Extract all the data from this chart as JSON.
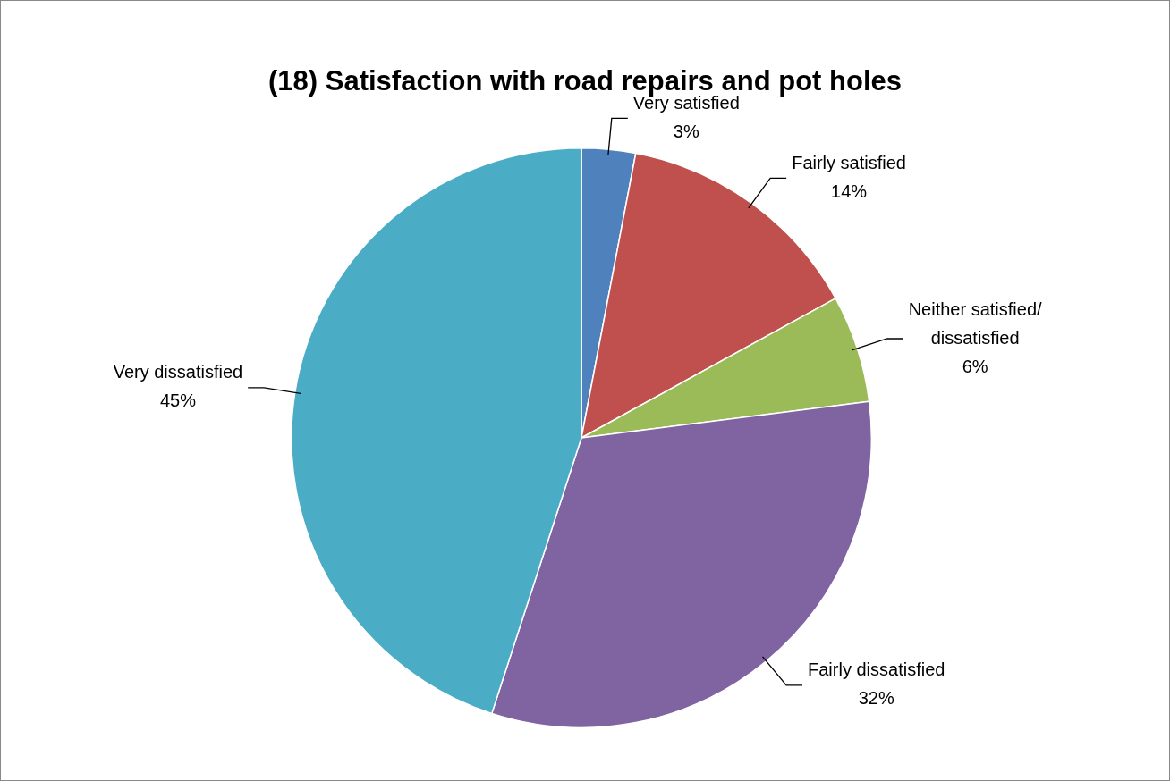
{
  "chart_data": {
    "type": "pie",
    "title": "(18) Satisfaction with road repairs and pot holes",
    "categories": [
      "Very satisfied",
      "Fairly satisfied",
      "Neither satisfied/ dissatisfied",
      "Fairly dissatisfied",
      "Very dissatisfied"
    ],
    "values": [
      3,
      14,
      6,
      32,
      45
    ],
    "value_labels": [
      "3%",
      "14%",
      "6%",
      "32%",
      "45%"
    ],
    "colors": [
      "#4f81bd",
      "#c0504d",
      "#9bbb59",
      "#8064a2",
      "#4bacc6"
    ],
    "legend": false
  }
}
